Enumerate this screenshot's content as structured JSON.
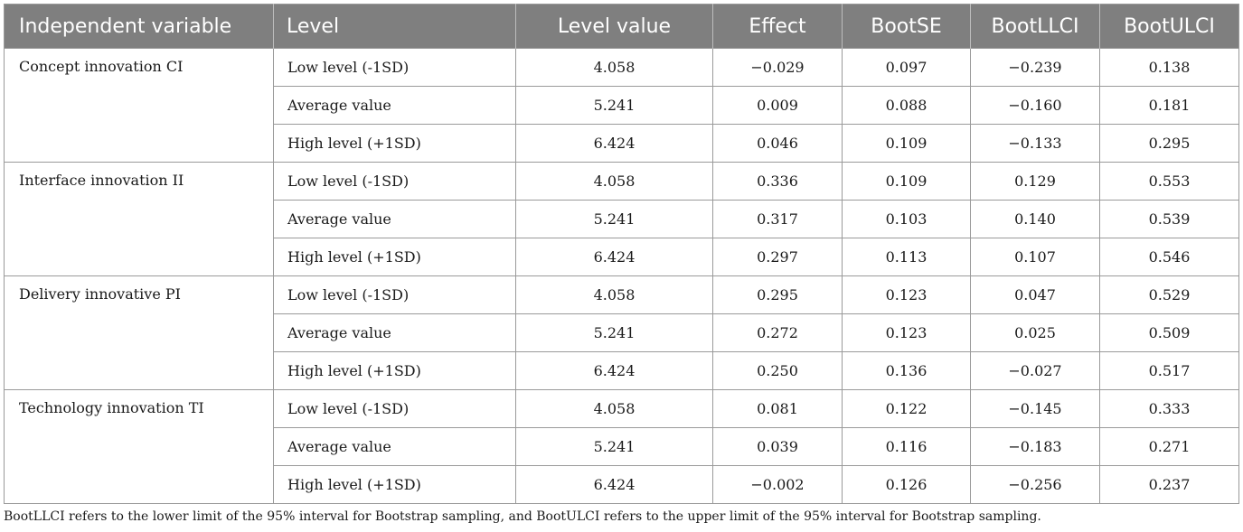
{
  "table": {
    "headers": [
      "Independent variable",
      "Level",
      "Level value",
      "Effect",
      "BootSE",
      "BootLLCI",
      "BootULCI"
    ],
    "groups": [
      {
        "variable": "Concept innovation CI",
        "rows": [
          {
            "level": "Low level (-1SD)",
            "level_value": "4.058",
            "effect": "−0.029",
            "boot_se": "0.097",
            "boot_llci": "−0.239",
            "boot_ulci": "0.138"
          },
          {
            "level": "Average value",
            "level_value": "5.241",
            "effect": "0.009",
            "boot_se": "0.088",
            "boot_llci": "−0.160",
            "boot_ulci": "0.181"
          },
          {
            "level": "High level (+1SD)",
            "level_value": "6.424",
            "effect": "0.046",
            "boot_se": "0.109",
            "boot_llci": "−0.133",
            "boot_ulci": "0.295"
          }
        ]
      },
      {
        "variable": "Interface innovation II",
        "rows": [
          {
            "level": "Low level (-1SD)",
            "level_value": "4.058",
            "effect": "0.336",
            "boot_se": "0.109",
            "boot_llci": "0.129",
            "boot_ulci": "0.553"
          },
          {
            "level": "Average value",
            "level_value": "5.241",
            "effect": "0.317",
            "boot_se": "0.103",
            "boot_llci": "0.140",
            "boot_ulci": "0.539"
          },
          {
            "level": "High level (+1SD)",
            "level_value": "6.424",
            "effect": "0.297",
            "boot_se": "0.113",
            "boot_llci": "0.107",
            "boot_ulci": "0.546"
          }
        ]
      },
      {
        "variable": "Delivery innovative PI",
        "rows": [
          {
            "level": "Low level (-1SD)",
            "level_value": "4.058",
            "effect": "0.295",
            "boot_se": "0.123",
            "boot_llci": "0.047",
            "boot_ulci": "0.529"
          },
          {
            "level": "Average value",
            "level_value": "5.241",
            "effect": "0.272",
            "boot_se": "0.123",
            "boot_llci": "0.025",
            "boot_ulci": "0.509"
          },
          {
            "level": "High level (+1SD)",
            "level_value": "6.424",
            "effect": "0.250",
            "boot_se": "0.136",
            "boot_llci": "−0.027",
            "boot_ulci": "0.517"
          }
        ]
      },
      {
        "variable": "Technology innovation TI",
        "rows": [
          {
            "level": "Low level (-1SD)",
            "level_value": "4.058",
            "effect": "0.081",
            "boot_se": "0.122",
            "boot_llci": "−0.145",
            "boot_ulci": "0.333"
          },
          {
            "level": "Average value",
            "level_value": "5.241",
            "effect": "0.039",
            "boot_se": "0.116",
            "boot_llci": "−0.183",
            "boot_ulci": "0.271"
          },
          {
            "level": "High level (+1SD)",
            "level_value": "6.424",
            "effect": "−0.002",
            "boot_se": "0.126",
            "boot_llci": "−0.256",
            "boot_ulci": "0.237"
          }
        ]
      }
    ]
  },
  "footnote": "BootLLCI refers to the lower limit of the 95% interval for Bootstrap sampling, and BootULCI refers to the upper limit of the 95% interval for Bootstrap sampling.",
  "colors": {
    "header_background": "#7f7f7f",
    "header_text": "#ffffff",
    "rule": "#9a9a9a"
  }
}
